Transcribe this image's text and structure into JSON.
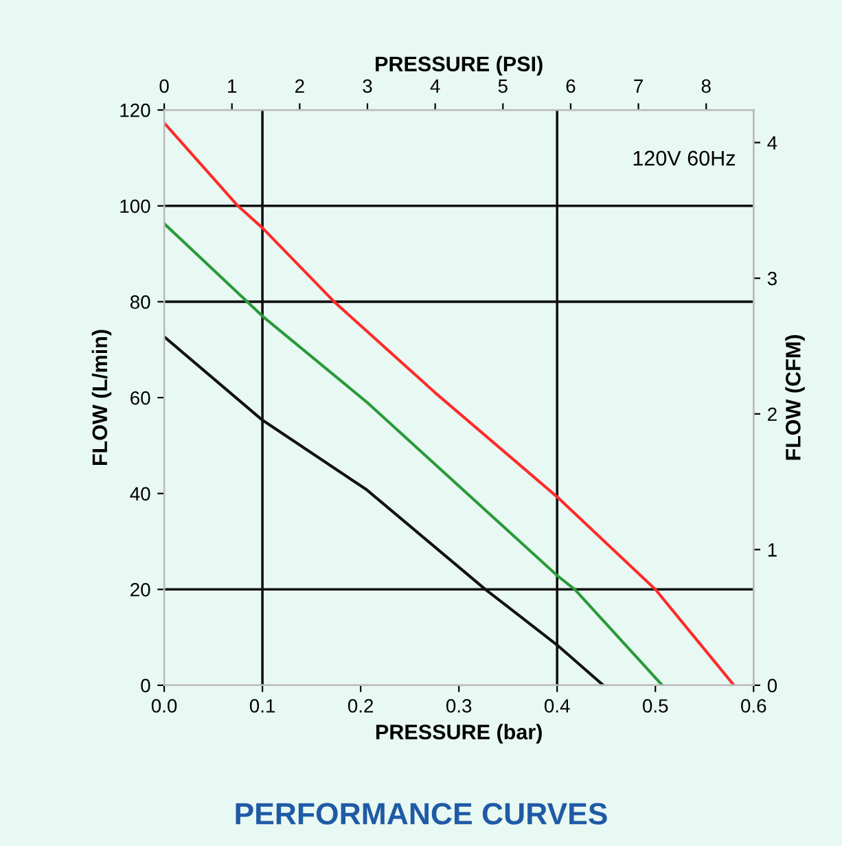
{
  "chart_data": {
    "type": "line",
    "title": "PERFORMANCE CURVES",
    "xlabel": "PRESSURE (bar)",
    "x2label": "PRESSURE (PSI)",
    "ylabel": "FLOW (L/min)",
    "y2label": "FLOW (CFM)",
    "annotations": [
      "120V 60Hz"
    ],
    "series": [
      {
        "color": "#ff2a2a",
        "x": [
          0.0,
          0.075,
          0.1,
          0.173,
          0.276,
          0.4,
          0.5,
          0.58
        ],
        "values": [
          117.3,
          100,
          95.4,
          80,
          61,
          39.3,
          20,
          0
        ]
      },
      {
        "color": "#2a9a3a",
        "x": [
          0.0,
          0.1,
          0.206,
          0.4,
          0.418,
          0.507
        ],
        "values": [
          96.3,
          77,
          59.1,
          22.9,
          20,
          0
        ]
      },
      {
        "color": "#111111",
        "x": [
          0.0,
          0.1,
          0.206,
          0.327,
          0.4,
          0.447
        ],
        "values": [
          72.7,
          55.3,
          40.8,
          20,
          8.4,
          0
        ]
      }
    ],
    "xlim": [
      0,
      0.6
    ],
    "xticks": [
      {
        "value": 0,
        "label": "0.0"
      },
      0.1,
      0.2,
      0.3,
      0.4,
      0.5,
      0.6
    ],
    "ylim": [
      0,
      120
    ],
    "yticks": [
      0,
      20,
      40,
      60,
      80,
      100,
      120
    ],
    "x2lim": [
      0,
      8.7
    ],
    "x2ticks": [
      0,
      1,
      2,
      3,
      4,
      5,
      6,
      7,
      8
    ],
    "y2lim": [
      0,
      4.24
    ],
    "y2ticks": [
      0,
      1,
      2,
      3,
      4
    ],
    "ref_lines": [
      {
        "axis": "x",
        "value": 0.1,
        "color": "#111111"
      },
      {
        "axis": "x",
        "value": 0.4,
        "color": "#111111"
      },
      {
        "axis": "y",
        "value": 20,
        "color": "#111111"
      },
      {
        "axis": "y",
        "value": 80,
        "color": "#111111"
      },
      {
        "axis": "y",
        "value": 100,
        "color": "#111111"
      }
    ],
    "line_style": "solid",
    "marker": "none",
    "grid": false,
    "legend": false
  }
}
